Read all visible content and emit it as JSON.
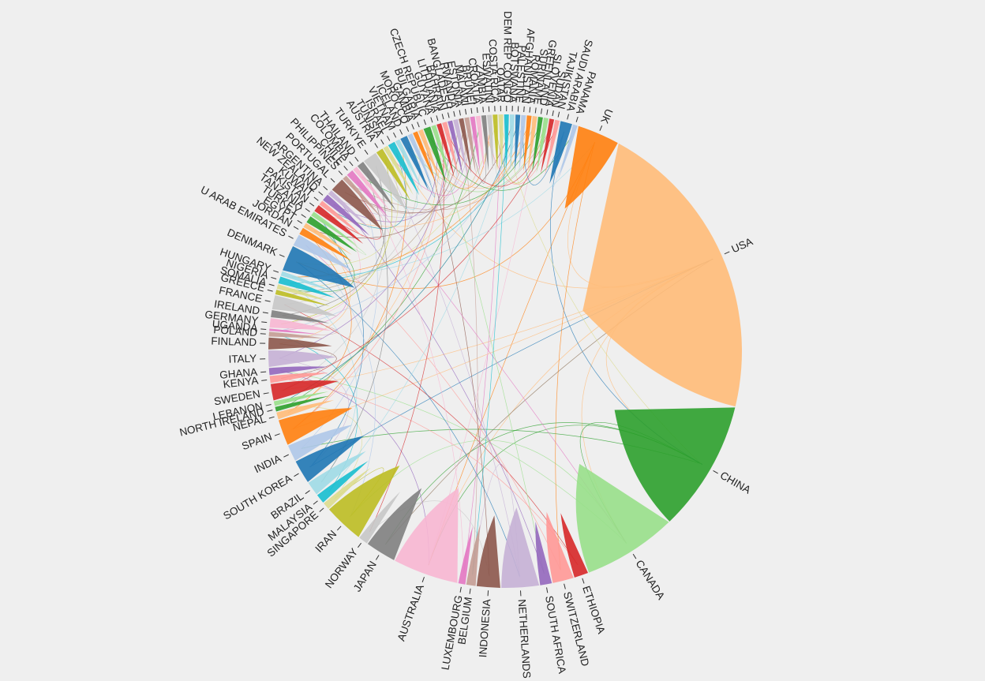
{
  "chart_data": {
    "type": "chord",
    "title": "",
    "groups": [
      {
        "label": "USA",
        "value": 130,
        "color": "#ffbb78"
      },
      {
        "label": "CHINA",
        "value": 56,
        "color": "#2ca02c"
      },
      {
        "label": "CANADA",
        "value": 40,
        "color": "#98df8a"
      },
      {
        "label": "ETHIOPIA",
        "value": 6,
        "color": "#d62728"
      },
      {
        "label": "SWITZERLAND",
        "value": 9,
        "color": "#ff9896"
      },
      {
        "label": "SOUTH AFRICA",
        "value": 5,
        "color": "#9467bd"
      },
      {
        "label": "NETHERLANDS",
        "value": 16,
        "color": "#c5b0d5"
      },
      {
        "label": "INDONESIA",
        "value": 10,
        "color": "#8c564b"
      },
      {
        "label": "BELGIUM",
        "value": 4,
        "color": "#c49c94"
      },
      {
        "label": "LUXEMBOURG",
        "value": 3,
        "color": "#e377c2"
      },
      {
        "label": "AUSTRALIA",
        "value": 28,
        "color": "#f7b6d2"
      },
      {
        "label": "JAPAN",
        "value": 13,
        "color": "#7f7f7f"
      },
      {
        "label": "NORWAY",
        "value": 4,
        "color": "#c7c7c7"
      },
      {
        "label": "IRAN",
        "value": 17,
        "color": "#bcbd22"
      },
      {
        "label": "SINGAPORE",
        "value": 3,
        "color": "#dbdb8d"
      },
      {
        "label": "MALAYSIA",
        "value": 4,
        "color": "#17becf"
      },
      {
        "label": "BRAZIL",
        "value": 6,
        "color": "#9edae5"
      },
      {
        "label": "SOUTH KOREA",
        "value": 10,
        "color": "#1f77b4"
      },
      {
        "label": "INDIA",
        "value": 7,
        "color": "#aec7e8"
      },
      {
        "label": "SPAIN",
        "value": 11,
        "color": "#ff7f0e"
      },
      {
        "label": "NEPAL",
        "value": 3,
        "color": "#ffbb78"
      },
      {
        "label": "NORTH IRELAND",
        "value": 2,
        "color": "#2ca02c"
      },
      {
        "label": "LEBANON",
        "value": 2,
        "color": "#98df8a"
      },
      {
        "label": "SWEDEN",
        "value": 7,
        "color": "#d62728"
      },
      {
        "label": "KENYA",
        "value": 3,
        "color": "#ff9896"
      },
      {
        "label": "GHANA",
        "value": 3,
        "color": "#9467bd"
      },
      {
        "label": "ITALY",
        "value": 7,
        "color": "#c5b0d5"
      },
      {
        "label": "FINLAND",
        "value": 5,
        "color": "#8c564b"
      },
      {
        "label": "POLAND",
        "value": 2,
        "color": "#c49c94"
      },
      {
        "label": "UGANDA",
        "value": 1,
        "color": "#e377c2"
      },
      {
        "label": "GERMANY",
        "value": 4,
        "color": "#f7b6d2"
      },
      {
        "label": "IRELAND",
        "value": 3,
        "color": "#7f7f7f"
      },
      {
        "label": "FRANCE",
        "value": 6,
        "color": "#c7c7c7"
      },
      {
        "label": "GREECE",
        "value": 2,
        "color": "#bcbd22"
      },
      {
        "label": "SOMALIA",
        "value": 2,
        "color": "#dbdb8d"
      },
      {
        "label": "NIGERIA",
        "value": 3,
        "color": "#17becf"
      },
      {
        "label": "HUNGARY",
        "value": 2,
        "color": "#9edae5"
      },
      {
        "label": "DENMARK",
        "value": 11,
        "color": "#1f77b4"
      },
      {
        "label": "U ARAB EMIRATES",
        "value": 5,
        "color": "#aec7e8"
      },
      {
        "label": "JORDAN",
        "value": 3,
        "color": "#ff7f0e"
      },
      {
        "label": "EGYPT",
        "value": 2,
        "color": "#ffbb78"
      },
      {
        "label": "TURKEY",
        "value": 3,
        "color": "#2ca02c"
      },
      {
        "label": "TANZANIA",
        "value": 2,
        "color": "#98df8a"
      },
      {
        "label": "PAKISTAN",
        "value": 3,
        "color": "#d62728"
      },
      {
        "label": "KUWAIT",
        "value": 2,
        "color": "#ff9896"
      },
      {
        "label": "NEW ZEALAND",
        "value": 3,
        "color": "#9467bd"
      },
      {
        "label": "ARGENTINA",
        "value": 2,
        "color": "#c5b0d5"
      },
      {
        "label": "PORTUGAL",
        "value": 6,
        "color": "#8c564b"
      },
      {
        "label": "PHILIPPINES",
        "value": 2,
        "color": "#c49c94"
      },
      {
        "label": "CHILE",
        "value": 3,
        "color": "#e377c2"
      },
      {
        "label": "COLOMBIA",
        "value": 2,
        "color": "#f7b6d2"
      },
      {
        "label": "THAILAND",
        "value": 3,
        "color": "#7f7f7f"
      },
      {
        "label": "TURKIYE",
        "value": 6,
        "color": "#c7c7c7"
      },
      {
        "label": "AUSTRIA",
        "value": 3,
        "color": "#bcbd22"
      },
      {
        "label": "TUNISIA",
        "value": 2,
        "color": "#dbdb8d"
      },
      {
        "label": "ISRAEL",
        "value": 3,
        "color": "#17becf"
      },
      {
        "label": "VIETNAM",
        "value": 2,
        "color": "#9edae5"
      },
      {
        "label": "ICELAND",
        "value": 3,
        "color": "#1f77b4"
      },
      {
        "label": "MOROCCO",
        "value": 2,
        "color": "#aec7e8"
      },
      {
        "label": "GAMBIA",
        "value": 2,
        "color": "#ff7f0e"
      },
      {
        "label": "BULGARIA",
        "value": 2,
        "color": "#ffbb78"
      },
      {
        "label": "CZECH REPUBLIC",
        "value": 3,
        "color": "#2ca02c"
      },
      {
        "label": "GUYANA",
        "value": 2,
        "color": "#98df8a"
      },
      {
        "label": "LITHUANIA",
        "value": 2,
        "color": "#d62728"
      },
      {
        "label": "BAHRAIN",
        "value": 2,
        "color": "#ff9896"
      },
      {
        "label": "BANGLADESH",
        "value": 2,
        "color": "#9467bd"
      },
      {
        "label": "RWANDA",
        "value": 2,
        "color": "#c5b0d5"
      },
      {
        "label": "ESTONIA",
        "value": 2,
        "color": "#8c564b"
      },
      {
        "label": "MALAWI",
        "value": 2,
        "color": "#c49c94"
      },
      {
        "label": "BRUNEI",
        "value": 2,
        "color": "#e377c2"
      },
      {
        "label": "CROATIA",
        "value": 2,
        "color": "#f7b6d2"
      },
      {
        "label": "ZAMBIA",
        "value": 2,
        "color": "#7f7f7f"
      },
      {
        "label": "ESWATINI",
        "value": 2,
        "color": "#c7c7c7"
      },
      {
        "label": "COSTA RICA",
        "value": 2,
        "color": "#bcbd22"
      },
      {
        "label": "QATAR",
        "value": 2,
        "color": "#dbdb8d"
      },
      {
        "label": "DEM REP CONGO",
        "value": 2,
        "color": "#17becf"
      },
      {
        "label": "BOTSWANA",
        "value": 2,
        "color": "#9edae5"
      },
      {
        "label": "PALESTINE",
        "value": 2,
        "color": "#1f77b4"
      },
      {
        "label": "AFGHANISTAN",
        "value": 2,
        "color": "#aec7e8"
      },
      {
        "label": "ROMANIA",
        "value": 2,
        "color": "#ff7f0e"
      },
      {
        "label": "SURINAME",
        "value": 2,
        "color": "#ffbb78"
      },
      {
        "label": "GREENLAND",
        "value": 2,
        "color": "#2ca02c"
      },
      {
        "label": "SLOVENIA",
        "value": 2,
        "color": "#98df8a"
      },
      {
        "label": "SUDAN",
        "value": 2,
        "color": "#d62728"
      },
      {
        "label": "TAJIKISTAN",
        "value": 2,
        "color": "#ff9896"
      },
      {
        "label": "SAUDI ARABIA",
        "value": 5,
        "color": "#1f77b4"
      },
      {
        "label": "PANAMA",
        "value": 2,
        "color": "#aec7e8"
      },
      {
        "label": "UK",
        "value": 18,
        "color": "#ff7f0e"
      }
    ],
    "links": [
      [
        "USA",
        "CHINA",
        8
      ],
      [
        "USA",
        "CANADA",
        5
      ],
      [
        "USA",
        "UK",
        4
      ],
      [
        "USA",
        "AUSTRALIA",
        3
      ],
      [
        "CHINA",
        "CANADA",
        3
      ],
      [
        "CHINA",
        "AUSTRALIA",
        2
      ],
      [
        "UK",
        "AUSTRALIA",
        2
      ],
      [
        "USA",
        "ISRAEL",
        1
      ],
      [
        "USA",
        "SPAIN",
        1
      ],
      [
        "USA",
        "SWEDEN",
        1
      ],
      [
        "CHINA",
        "JAPAN",
        1
      ],
      [
        "CANADA",
        "IRAN",
        1
      ],
      [
        "UK",
        "DENMARK",
        1
      ],
      [
        "SOUTH KOREA",
        "USA",
        1
      ],
      [
        "NETHERLANDS",
        "BELGIUM",
        1
      ],
      [
        "SAUDI ARABIA",
        "CHINA",
        1
      ]
    ]
  }
}
